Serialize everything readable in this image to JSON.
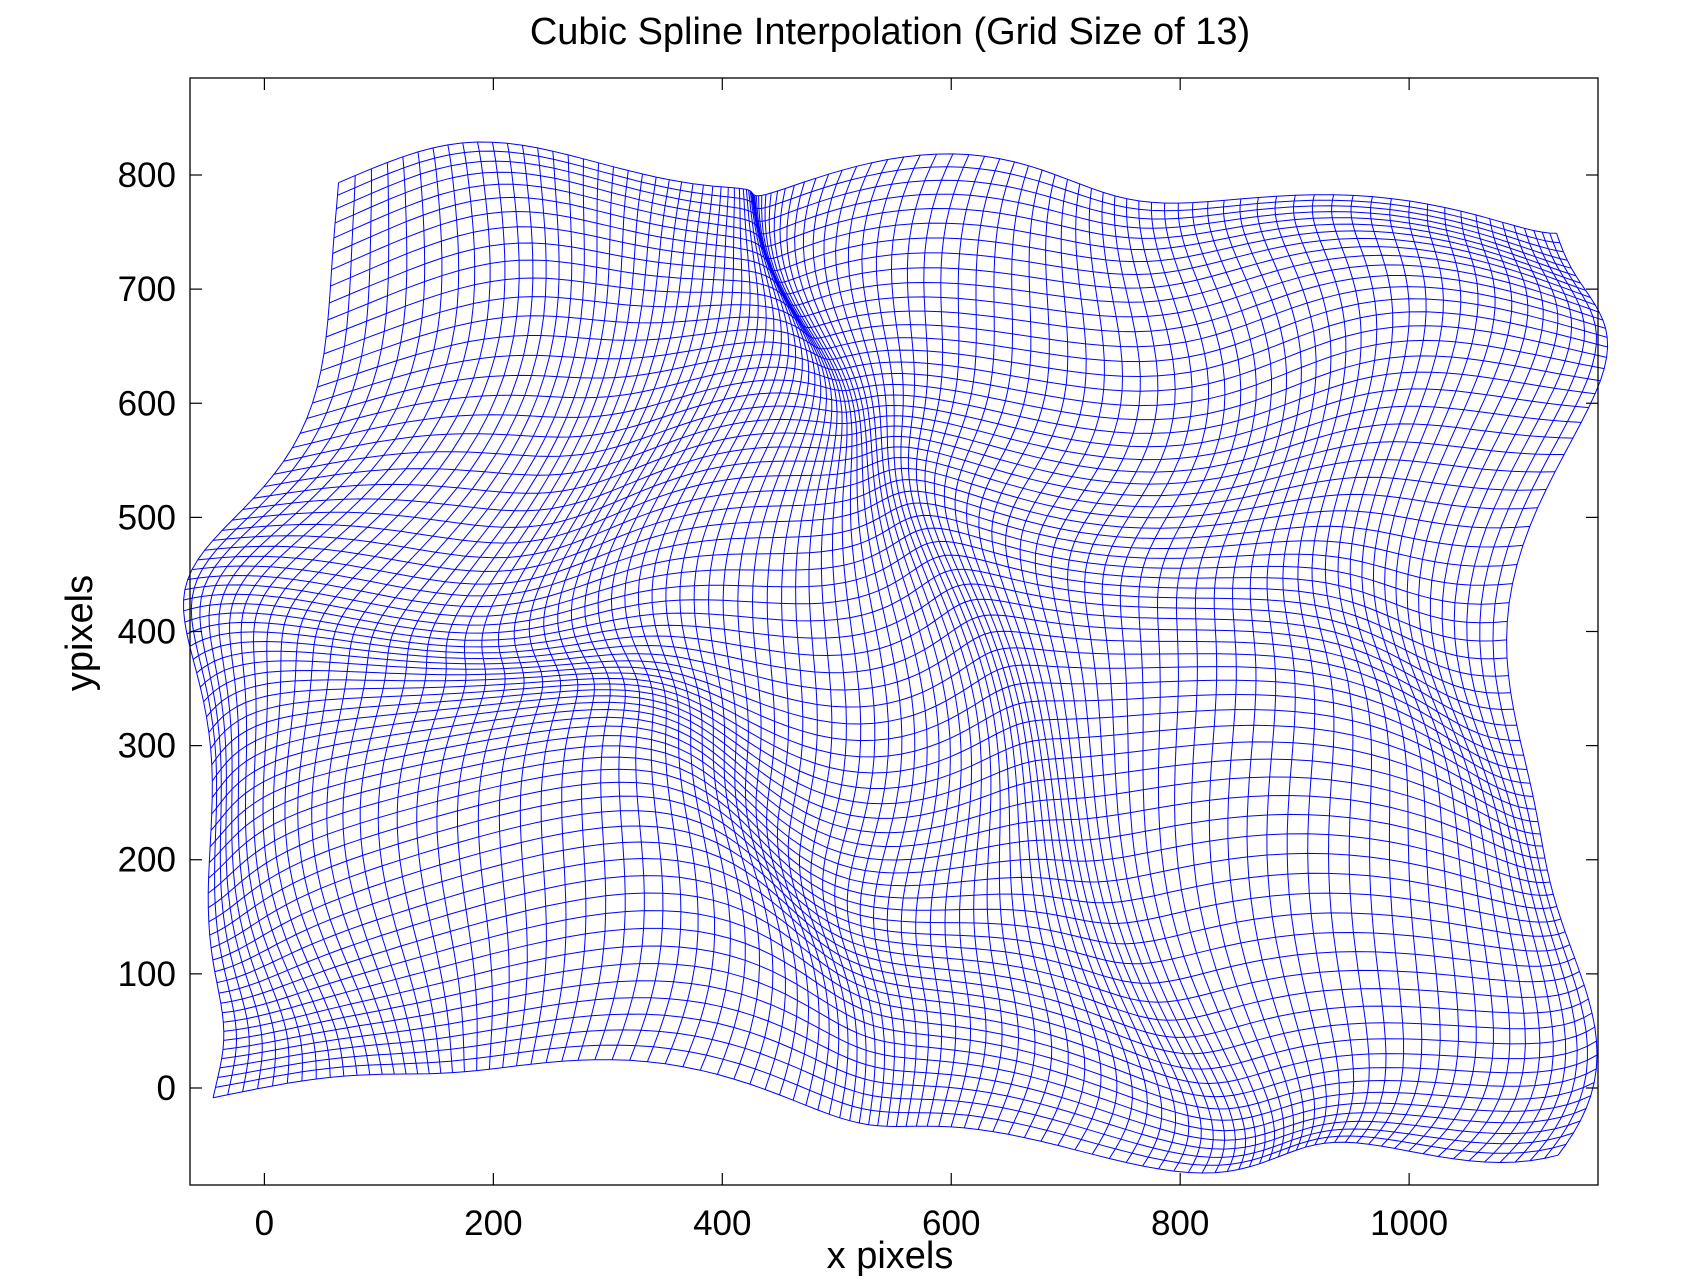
{
  "chart_data": {
    "type": "line",
    "title": "Cubic Spline Interpolation (Grid Size of 13)",
    "xlabel": "x pixels",
    "ylabel": "ypixels",
    "xlim": [
      -65,
      1165
    ],
    "ylim": [
      -85,
      885
    ],
    "xticks": [
      0,
      200,
      400,
      600,
      800,
      1000
    ],
    "yticks": [
      0,
      100,
      200,
      300,
      400,
      500,
      600,
      700,
      800
    ],
    "grid": false,
    "legend": "none",
    "color": "#0000ff",
    "mesh": {
      "description_source": "deformed square grid mesh",
      "x_range": [
        0,
        1080
      ],
      "y_range": [
        0,
        740
      ],
      "columns": 100,
      "rows": 70
    }
  }
}
